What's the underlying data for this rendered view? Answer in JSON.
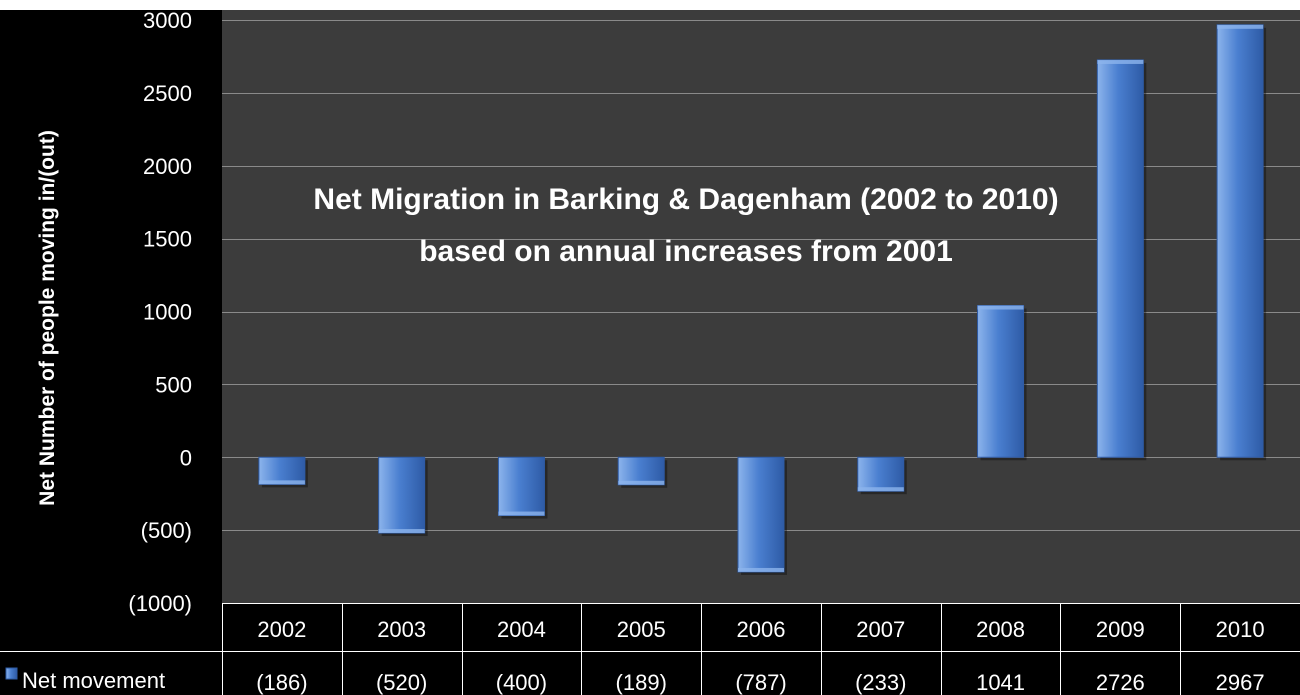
{
  "chart_data": {
    "type": "bar",
    "title_line1": "Net Migration in Barking & Dagenham (2002 to  2010)",
    "title_line2": "based on annual increases from 2001",
    "ylabel": "Net Number of people moving in/(out)",
    "ylim": [
      -1000,
      3000
    ],
    "ytick_values": [
      3000,
      2500,
      2000,
      1500,
      1000,
      500,
      0,
      -500,
      -1000
    ],
    "ytick_labels": [
      "3000",
      "2500",
      "2000",
      "1500",
      "1000",
      "500",
      "0",
      "(500)",
      "(1000)"
    ],
    "categories": [
      "2002",
      "2003",
      "2004",
      "2005",
      "2006",
      "2007",
      "2008",
      "2009",
      "2010"
    ],
    "series": [
      {
        "name": "Net movement",
        "values": [
          -186,
          -520,
          -400,
          -189,
          -787,
          -233,
          1041,
          2726,
          2967
        ],
        "labels": [
          "(186)",
          "(520)",
          "(400)",
          "(189)",
          "(787)",
          "(233)",
          "1041",
          "2726",
          "2967"
        ]
      }
    ],
    "grid": true,
    "legend_placement": "data-table-left",
    "colors": {
      "plot_bg": "#3c3c3c",
      "page_bg": "#000000",
      "bar": "#4a7fd0",
      "bar_light": "#8cb4ec",
      "bar_dark": "#2e5ba6",
      "grid": "#8a8a8a",
      "text": "#ffffff"
    }
  }
}
